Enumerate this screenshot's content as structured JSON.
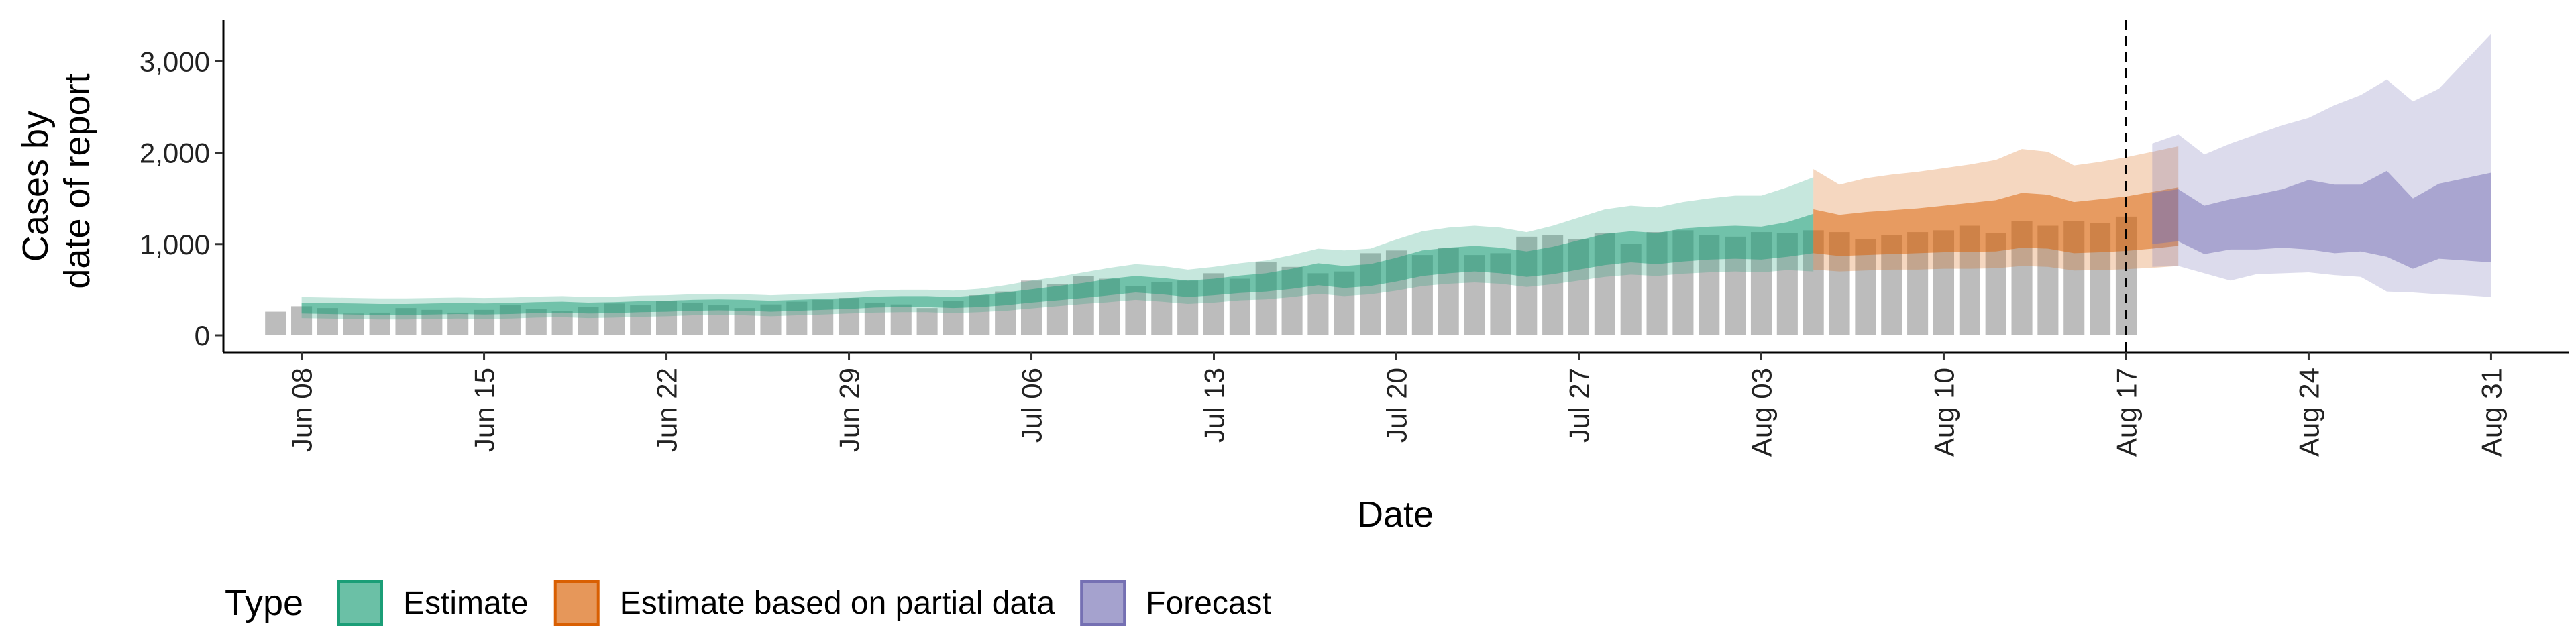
{
  "chart_data": {
    "type": "area",
    "xlabel": "Date",
    "ylabel_lines": [
      "Cases by",
      "date of report"
    ],
    "x_range": [
      "2020-06-05",
      "2020-09-03"
    ],
    "ylim": [
      0,
      3450
    ],
    "y_ticks": [
      0,
      1000,
      2000,
      3000
    ],
    "y_tick_labels": [
      "0",
      "1,000",
      "2,000",
      "3,000"
    ],
    "x_ticks": [
      "2020-06-08",
      "2020-06-15",
      "2020-06-22",
      "2020-06-29",
      "2020-07-06",
      "2020-07-13",
      "2020-07-20",
      "2020-07-27",
      "2020-08-03",
      "2020-08-10",
      "2020-08-17",
      "2020-08-24",
      "2020-08-31"
    ],
    "x_tick_labels": [
      "Jun 08",
      "Jun 15",
      "Jun 22",
      "Jun 29",
      "Jul 06",
      "Jul 13",
      "Jul 20",
      "Jul 27",
      "Aug 03",
      "Aug 10",
      "Aug 17",
      "Aug 24",
      "Aug 31"
    ],
    "grid": false,
    "legend": {
      "position": "bottom",
      "title": "Type",
      "items": [
        {
          "label": "Estimate",
          "color": "#1b9e77"
        },
        {
          "label": "Estimate based on partial data",
          "color": "#d95f02"
        },
        {
          "label": "Forecast",
          "color": "#7570b3"
        }
      ]
    },
    "vline": {
      "x": "2020-08-17",
      "style": "dashed"
    },
    "bars": {
      "start": "2020-06-07",
      "color": "#a0a0a0",
      "values": [
        260,
        320,
        300,
        240,
        250,
        300,
        280,
        250,
        280,
        330,
        290,
        270,
        310,
        350,
        330,
        380,
        360,
        330,
        300,
        340,
        370,
        390,
        410,
        360,
        340,
        300,
        380,
        440,
        480,
        600,
        560,
        650,
        620,
        540,
        580,
        600,
        680,
        620,
        800,
        750,
        680,
        700,
        900,
        930,
        880,
        960,
        880,
        900,
        1080,
        1100,
        1050,
        1120,
        1000,
        1130,
        1150,
        1100,
        1080,
        1130,
        1120,
        1150,
        1130,
        1050,
        1100,
        1130,
        1150,
        1200,
        1120,
        1250,
        1200,
        1250,
        1230,
        1300
      ]
    },
    "series": [
      {
        "name": "Estimate",
        "color": "#1b9e77",
        "start": "2020-06-08",
        "median": [
          300,
          295,
          290,
          285,
          285,
          290,
          295,
          290,
          295,
          305,
          310,
          300,
          305,
          315,
          320,
          330,
          335,
          330,
          320,
          330,
          340,
          350,
          365,
          370,
          370,
          360,
          375,
          400,
          430,
          460,
          490,
          530,
          560,
          540,
          510,
          530,
          560,
          580,
          620,
          670,
          640,
          660,
          720,
          790,
          820,
          840,
          820,
          780,
          820,
          880,
          940,
          970,
          950,
          990,
          1010,
          1020,
          1010,
          1050,
          1110
        ],
        "inner_lower": [
          240,
          235,
          230,
          225,
          225,
          230,
          235,
          230,
          235,
          245,
          250,
          240,
          245,
          255,
          260,
          270,
          275,
          270,
          260,
          270,
          280,
          290,
          305,
          310,
          310,
          300,
          310,
          330,
          360,
          385,
          410,
          440,
          470,
          450,
          420,
          440,
          465,
          480,
          510,
          550,
          520,
          540,
          590,
          650,
          680,
          700,
          680,
          640,
          670,
          720,
          770,
          800,
          780,
          810,
          830,
          840,
          830,
          860,
          900
        ],
        "inner_upper": [
          360,
          355,
          350,
          345,
          345,
          350,
          355,
          350,
          355,
          365,
          370,
          360,
          365,
          375,
          380,
          390,
          395,
          390,
          380,
          390,
          400,
          410,
          425,
          430,
          430,
          420,
          440,
          470,
          505,
          540,
          575,
          620,
          650,
          630,
          600,
          620,
          655,
          680,
          730,
          790,
          760,
          780,
          850,
          930,
          960,
          980,
          960,
          920,
          970,
          1040,
          1110,
          1140,
          1120,
          1170,
          1190,
          1200,
          1190,
          1240,
          1330
        ],
        "outer_lower": [
          190,
          185,
          180,
          175,
          175,
          180,
          185,
          180,
          185,
          195,
          200,
          190,
          195,
          205,
          210,
          220,
          225,
          220,
          210,
          220,
          230,
          240,
          250,
          255,
          255,
          245,
          255,
          270,
          295,
          320,
          345,
          365,
          390,
          370,
          345,
          360,
          385,
          395,
          420,
          455,
          430,
          450,
          490,
          540,
          565,
          580,
          565,
          530,
          560,
          600,
          640,
          665,
          650,
          675,
          690,
          700,
          690,
          715,
          700
        ],
        "outer_upper": [
          420,
          415,
          410,
          405,
          405,
          410,
          415,
          410,
          415,
          425,
          430,
          420,
          425,
          435,
          440,
          450,
          455,
          450,
          440,
          450,
          460,
          470,
          490,
          500,
          500,
          490,
          510,
          550,
          600,
          640,
          690,
          740,
          780,
          760,
          720,
          750,
          790,
          820,
          880,
          950,
          930,
          950,
          1050,
          1140,
          1180,
          1200,
          1180,
          1130,
          1200,
          1290,
          1380,
          1420,
          1400,
          1460,
          1500,
          1530,
          1530,
          1620,
          1730
        ]
      },
      {
        "name": "Estimate based on partial data",
        "color": "#d95f02",
        "start": "2020-08-05",
        "median": [
          1130,
          1090,
          1110,
          1120,
          1130,
          1150,
          1160,
          1180,
          1240,
          1230,
          1170,
          1190,
          1210,
          1250,
          1290
        ],
        "inner_lower": [
          900,
          870,
          880,
          890,
          900,
          910,
          915,
          920,
          960,
          950,
          900,
          910,
          925,
          950,
          980
        ],
        "inner_upper": [
          1380,
          1320,
          1350,
          1370,
          1390,
          1420,
          1450,
          1480,
          1560,
          1540,
          1460,
          1490,
          1520,
          1570,
          1620
        ],
        "outer_lower": [
          720,
          700,
          710,
          720,
          720,
          730,
          730,
          735,
          760,
          750,
          710,
          715,
          725,
          740,
          760
        ],
        "outer_upper": [
          1820,
          1650,
          1720,
          1760,
          1790,
          1830,
          1870,
          1920,
          2040,
          2010,
          1860,
          1900,
          1950,
          2010,
          2070
        ]
      },
      {
        "name": "Forecast",
        "color": "#7570b3",
        "start": "2020-08-18",
        "median": [
          1300,
          1350,
          1150,
          1200,
          1260,
          1300,
          1230,
          1310,
          1260,
          1300,
          1120,
          1230,
          1250,
          1290
        ],
        "inner_lower": [
          1000,
          1030,
          890,
          940,
          940,
          960,
          940,
          900,
          920,
          860,
          730,
          840,
          820,
          800
        ],
        "inner_upper": [
          1560,
          1600,
          1420,
          1490,
          1540,
          1600,
          1700,
          1650,
          1650,
          1800,
          1500,
          1660,
          1720,
          1780
        ],
        "outer_lower": [
          750,
          760,
          680,
          600,
          670,
          680,
          690,
          660,
          640,
          480,
          470,
          450,
          440,
          420
        ],
        "outer_upper": [
          2100,
          2200,
          1980,
          2100,
          2200,
          2300,
          2380,
          2520,
          2630,
          2800,
          2560,
          2700,
          3000,
          3300
        ]
      }
    ]
  }
}
